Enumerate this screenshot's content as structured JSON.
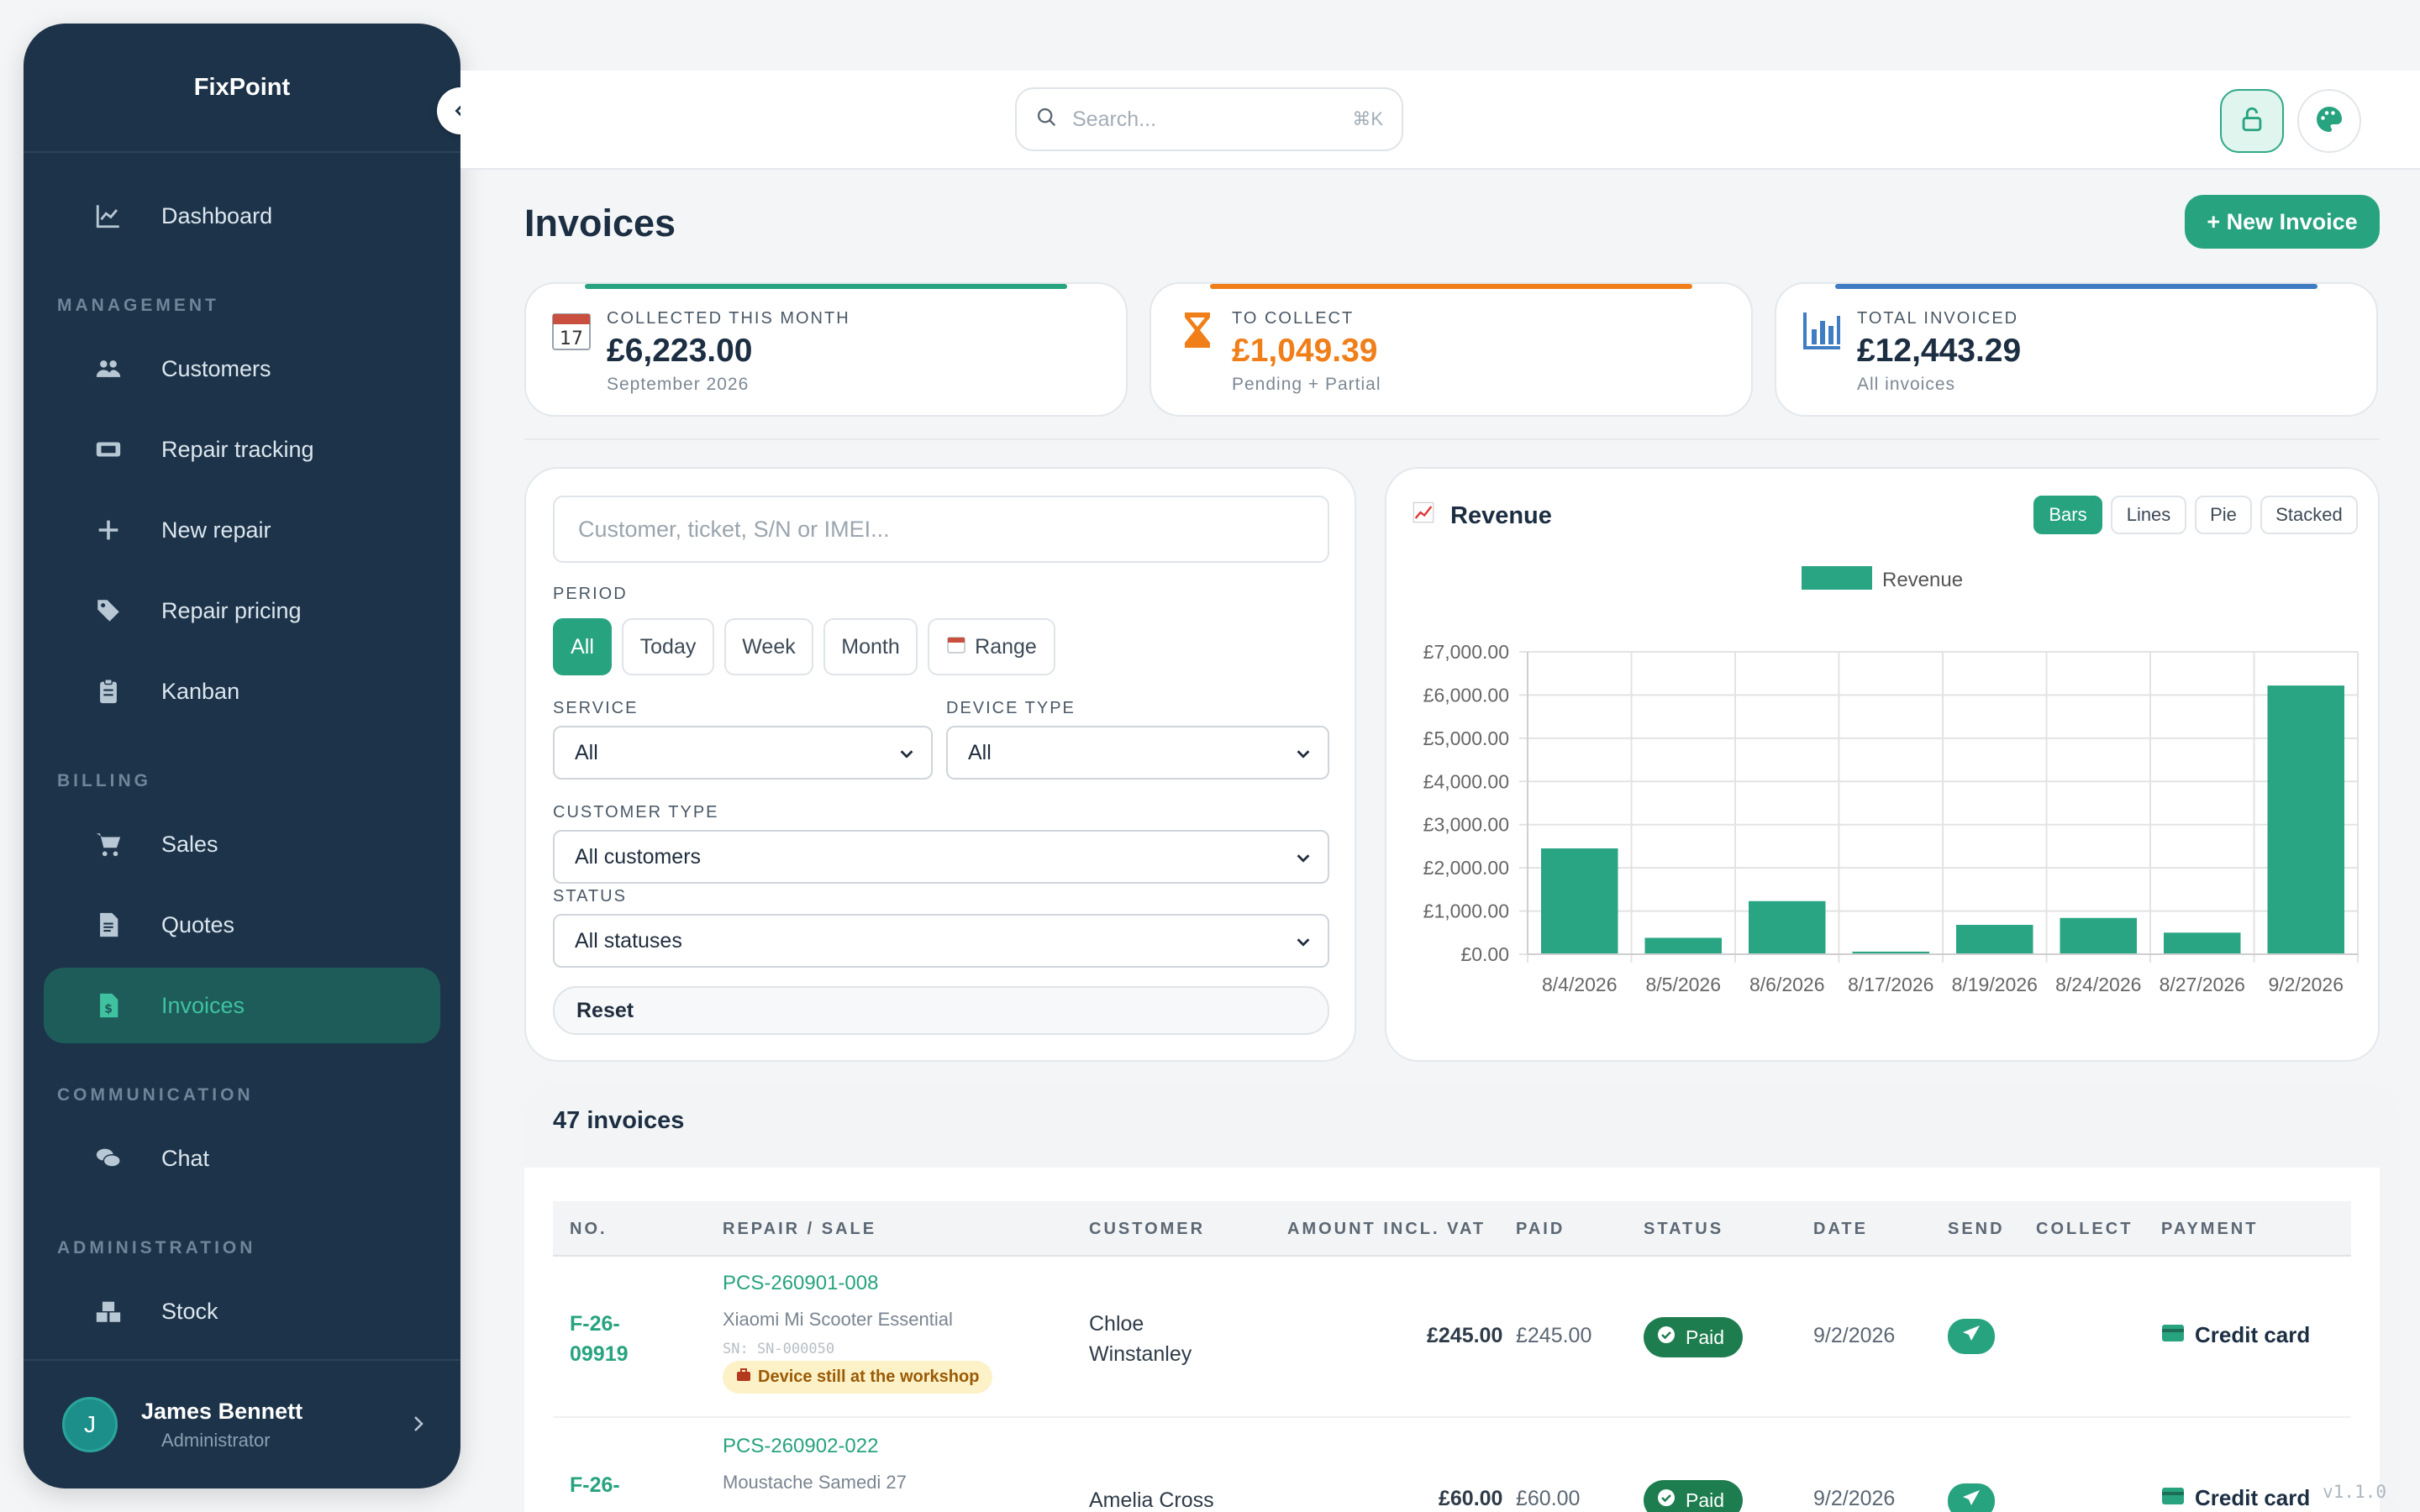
{
  "sidebar": {
    "brand": "FixPoint",
    "sections": {
      "management": "MANAGEMENT",
      "billing": "BILLING",
      "communication": "COMMUNICATION",
      "administration": "ADMINISTRATION"
    },
    "items": {
      "dashboard": "Dashboard",
      "customers": "Customers",
      "repair_tracking": "Repair tracking",
      "new_repair": "New repair",
      "repair_pricing": "Repair pricing",
      "kanban": "Kanban",
      "sales": "Sales",
      "quotes": "Quotes",
      "invoices": "Invoices",
      "chat": "Chat",
      "stock": "Stock"
    },
    "user": {
      "initial": "J",
      "name": "James Bennett",
      "role": "Administrator"
    }
  },
  "topbar": {
    "search_placeholder": "Search...",
    "search_shortcut": "⌘K"
  },
  "page": {
    "title": "Invoices",
    "new_button": "+ New Invoice"
  },
  "stats": [
    {
      "label": "COLLECTED THIS MONTH",
      "value": "£6,223.00",
      "sub": "September 2026",
      "color": "#27a37f",
      "icon": "calendar-icon",
      "icon_text": "17"
    },
    {
      "label": "TO COLLECT",
      "value": "£1,049.39",
      "sub": "Pending + Partial",
      "color": "#f07f1a",
      "icon": "hourglass-icon"
    },
    {
      "label": "TOTAL INVOICED",
      "value": "£12,443.29",
      "sub": "All invoices",
      "color": "#3f7cc4",
      "icon": "bar-chart-icon"
    }
  ],
  "filters": {
    "search_placeholder": "Customer, ticket, S/N or IMEI...",
    "period_label": "PERIOD",
    "periods": [
      "All",
      "Today",
      "Week",
      "Month",
      "Range"
    ],
    "service_label": "SERVICE",
    "service_value": "All",
    "device_label": "DEVICE TYPE",
    "device_value": "All",
    "customer_type_label": "CUSTOMER TYPE",
    "customer_type_value": "All customers",
    "status_label": "STATUS",
    "status_value": "All statuses",
    "reset": "Reset"
  },
  "chart_panel": {
    "title": "Revenue",
    "types": [
      "Bars",
      "Lines",
      "Pie",
      "Stacked"
    ],
    "active_type": "Bars"
  },
  "chart_data": {
    "type": "bar",
    "categories": [
      "8/4/2026",
      "8/5/2026",
      "8/6/2026",
      "8/17/2026",
      "8/19/2026",
      "8/24/2026",
      "8/27/2026",
      "9/2/2026"
    ],
    "series": [
      {
        "name": "Revenue",
        "values": [
          2450,
          380,
          1230,
          60,
          680,
          840,
          500,
          6220
        ],
        "color": "#2aa583"
      }
    ],
    "yticks": [
      "£0.00",
      "£1,000.00",
      "£2,000.00",
      "£3,000.00",
      "£4,000.00",
      "£5,000.00",
      "£6,000.00",
      "£7,000.00"
    ],
    "ylim": [
      0,
      7000
    ],
    "grid": true,
    "legend": "top"
  },
  "table": {
    "count": "47 invoices",
    "headers": [
      "NO.",
      "REPAIR / SALE",
      "CUSTOMER",
      "AMOUNT INCL. VAT",
      "PAID",
      "STATUS",
      "DATE",
      "SEND",
      "COLLECT",
      "PAYMENT"
    ],
    "rows": [
      {
        "no": "F-26-\n09919",
        "ticket": "PCS-260901-008",
        "device": "Xiaomi Mi Scooter Essential",
        "sn": "SN: SN-000050",
        "warning": "Device still at the workshop",
        "customer": "Chloe\nWinstanley",
        "amount": "£245.00",
        "paid": "£245.00",
        "status": "Paid",
        "date": "9/2/2026",
        "payment": "Credit card"
      },
      {
        "no": "F-26-",
        "ticket": "PCS-260902-022",
        "device": "Moustache Samedi 27",
        "customer": "Amelia Cross",
        "amount": "£60.00",
        "paid": "£60.00",
        "status": "Paid",
        "date": "9/2/2026",
        "payment": "Credit card"
      }
    ]
  },
  "version": "v1.1.0"
}
